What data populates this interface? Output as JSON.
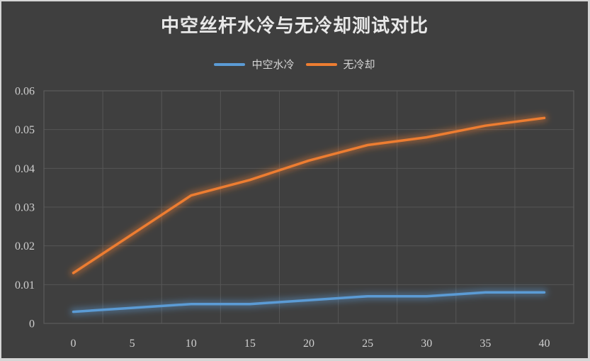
{
  "title": "中空丝杆水冷与无冷却测试对比",
  "legend": {
    "items": [
      "中空水冷",
      "无冷却"
    ]
  },
  "axes": {
    "y_tick_labels": [
      "0",
      "0.01",
      "0.02",
      "0.03",
      "0.04",
      "0.05",
      "0.06"
    ],
    "x_tick_labels": [
      "0",
      "5",
      "10",
      "15",
      "20",
      "25",
      "30",
      "35",
      "40"
    ]
  },
  "colors": {
    "background": "#3F3F3F",
    "frame_border": "#D6D6D6",
    "gridline": "#565656",
    "plot_border": "#5C5C5C",
    "title_text": "#E8E8E8",
    "legend_text": "#D5D5D5",
    "tick_text": "#CFCFCF",
    "series_water_cooled": "#5B9BD5",
    "series_no_cooling": "#ED7D31"
  },
  "chart_data": {
    "type": "line",
    "title": "中空丝杆水冷与无冷却测试对比",
    "categories": [
      0,
      5,
      10,
      15,
      20,
      25,
      30,
      35,
      40
    ],
    "series": [
      {
        "name": "中空水冷",
        "color": "#5B9BD5",
        "values": [
          0.003,
          0.004,
          0.005,
          0.005,
          0.006,
          0.007,
          0.007,
          0.008,
          0.008
        ]
      },
      {
        "name": "无冷却",
        "color": "#ED7D31",
        "values": [
          0.013,
          0.023,
          0.033,
          0.037,
          0.042,
          0.046,
          0.048,
          0.051,
          0.053
        ]
      }
    ],
    "xlabel": "",
    "ylabel": "",
    "ylim": [
      0,
      0.06
    ],
    "ytick_step": 0.01,
    "grid": true,
    "legend_position": "top-center",
    "line_style": "glow"
  }
}
